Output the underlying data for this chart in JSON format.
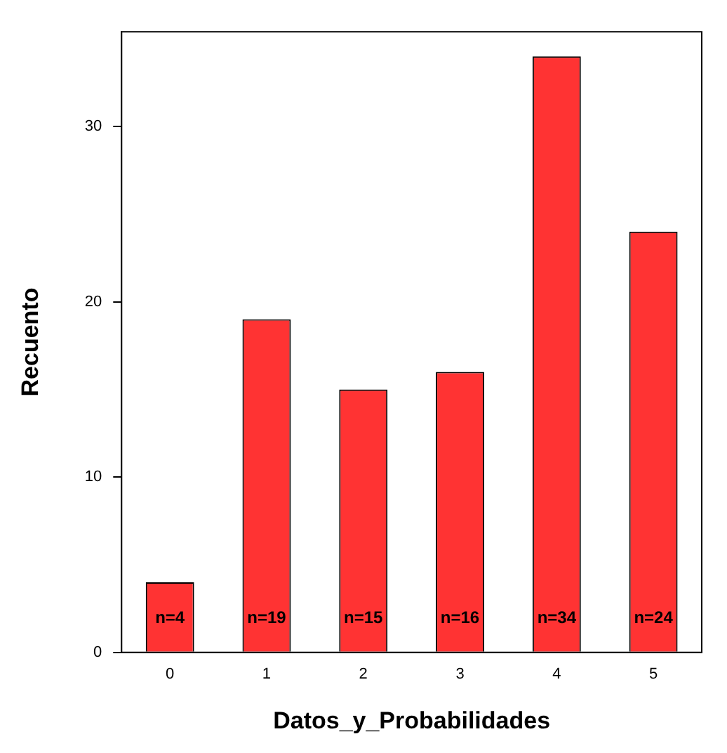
{
  "chart_data": {
    "type": "bar",
    "xlabel": "Datos_y_Probabilidades",
    "ylabel": "Recuento",
    "categories": [
      "0",
      "1",
      "2",
      "3",
      "4",
      "5"
    ],
    "values": [
      4,
      19,
      15,
      16,
      34,
      24
    ],
    "value_labels": [
      "n=4",
      "n=19",
      "n=15",
      "n=16",
      "n=34",
      "n=24"
    ],
    "color": "#ff3333",
    "ylim": [
      0,
      35.4
    ],
    "yticks": [
      0,
      10,
      20,
      30
    ],
    "grid": false,
    "legend": false
  }
}
